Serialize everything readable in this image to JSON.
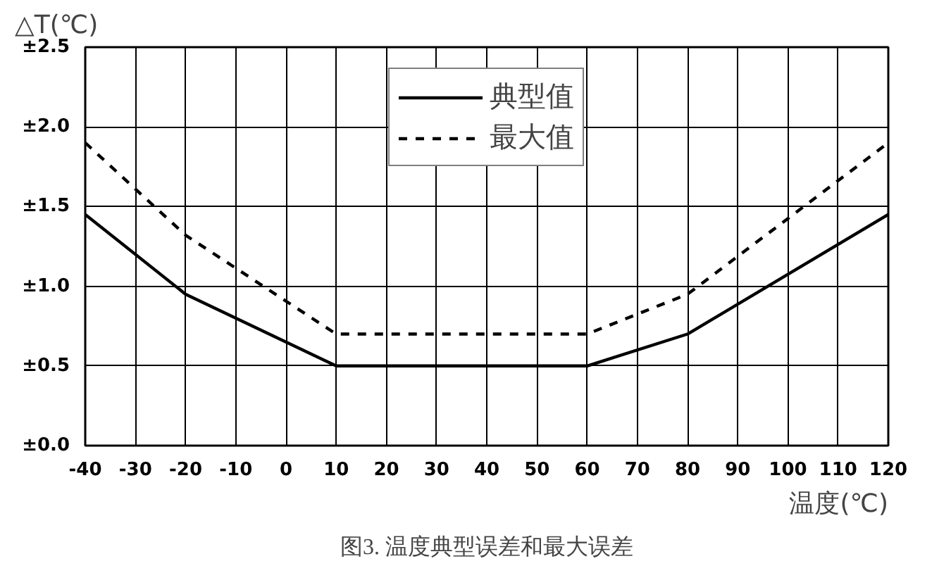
{
  "chart_data": {
    "type": "line",
    "ylabel": "△T(℃)",
    "xlabel": "温度(℃)",
    "annotations": [
      "图3. 温度典型误差和最大误差"
    ],
    "series": [
      {
        "name": "典型值",
        "color": "#000000",
        "line_style": "solid",
        "x": [
          -40,
          -20,
          10,
          60,
          80,
          120
        ],
        "values": [
          1.45,
          0.95,
          0.5,
          0.5,
          0.7,
          1.45
        ]
      },
      {
        "name": "最大值",
        "color": "#000000",
        "line_style": "dashed",
        "x": [
          -40,
          -20,
          10,
          60,
          80,
          120
        ],
        "values": [
          1.9,
          1.32,
          0.7,
          0.7,
          0.95,
          1.9
        ]
      }
    ],
    "xlim": [
      -40,
      120
    ],
    "xticks": [
      -40,
      -30,
      -20,
      -10,
      0,
      10,
      20,
      30,
      40,
      50,
      60,
      70,
      80,
      90,
      100,
      110,
      120
    ],
    "ylim": [
      0,
      2.5
    ],
    "yticks": [
      {
        "value": 0,
        "label": "±0.0"
      },
      {
        "value": 0.5,
        "label": "±0.5"
      },
      {
        "value": 1.0,
        "label": "±1.0"
      },
      {
        "value": 1.5,
        "label": "±1.5"
      },
      {
        "value": 2.0,
        "label": "±2.0"
      },
      {
        "value": 2.5,
        "label": "±2.5"
      }
    ],
    "grid": true,
    "legend": "top",
    "marker": "none"
  }
}
